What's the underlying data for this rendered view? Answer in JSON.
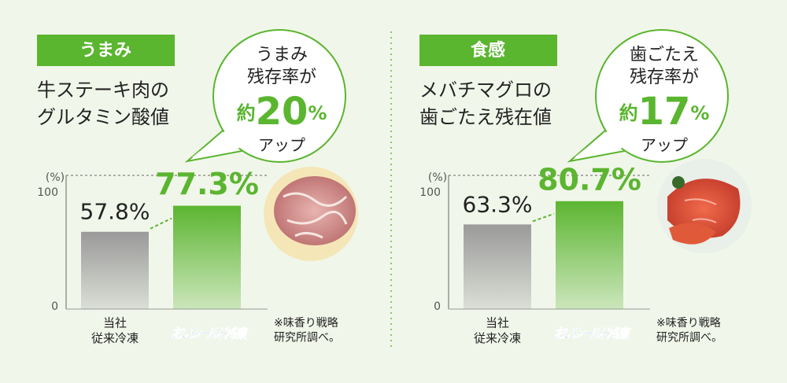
{
  "chart_data": [
    {
      "type": "bar",
      "tag": "うまみ",
      "subtitle": "牛ステーキ肉の\nグルタミン酸値",
      "bubble": {
        "lead": "うまみ\n残存率が",
        "prefix": "約",
        "number": "20",
        "unit": "%",
        "tail": "アップ"
      },
      "y_label": "(%)",
      "categories": [
        "当社\n従来冷凍",
        "おいシールド冷凍"
      ],
      "values": [
        57.8,
        77.3
      ],
      "value_labels": [
        "57.8%",
        "77.3%"
      ],
      "colors": [
        "#9a9a9a",
        "#5cb531"
      ],
      "ylim": [
        0,
        100
      ],
      "yticks": [
        0,
        100
      ],
      "grid": true,
      "note": "※味香り戦略\n研究所調べ。"
    },
    {
      "type": "bar",
      "tag": "食感",
      "subtitle": "メバチマグロの\n歯ごたえ残在値",
      "bubble": {
        "lead": "歯ごたえ\n残存率が",
        "prefix": "約",
        "number": "17",
        "unit": "%",
        "tail": "アップ"
      },
      "y_label": "(%)",
      "categories": [
        "当社\n従来冷凍",
        "おいシールド冷凍"
      ],
      "values": [
        63.3,
        80.7
      ],
      "value_labels": [
        "63.3%",
        "80.7%"
      ],
      "colors": [
        "#9a9a9a",
        "#5cb531"
      ],
      "ylim": [
        0,
        100
      ],
      "yticks": [
        0,
        100
      ],
      "grid": true,
      "note": "※味香り戦略\n研究所調べ。"
    }
  ]
}
